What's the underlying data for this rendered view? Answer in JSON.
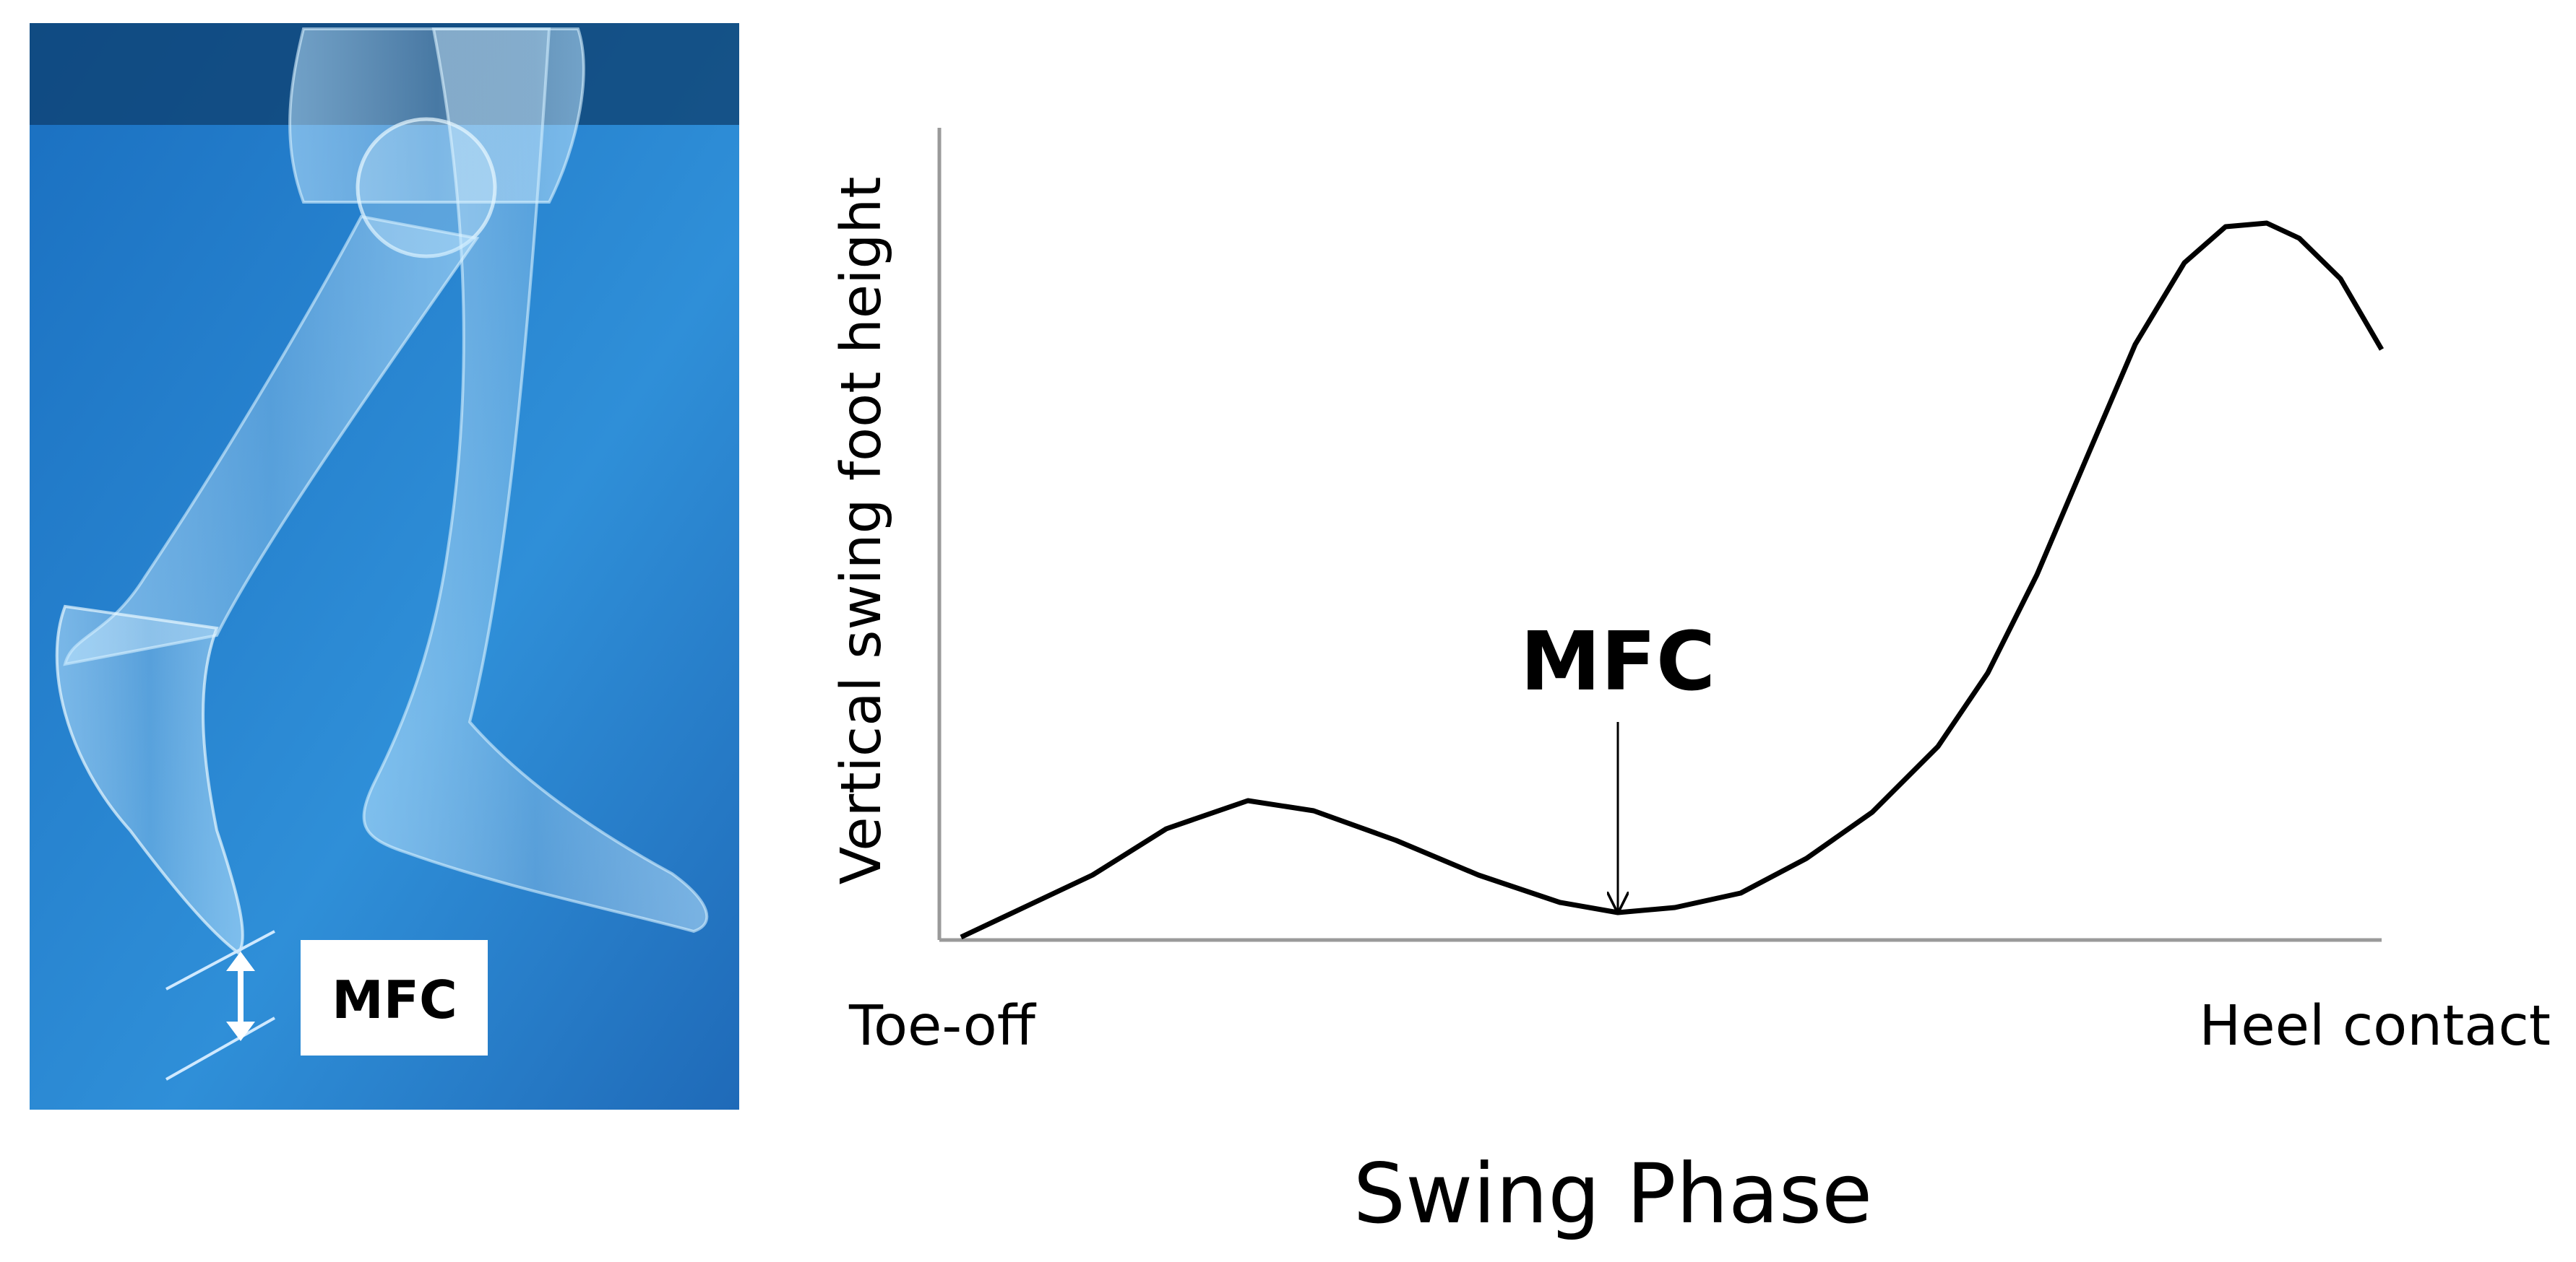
{
  "illustration": {
    "label": "MFC"
  },
  "graph": {
    "y_axis_label": "Vertical swing foot height",
    "annotation": "MFC",
    "start_label": "Toe-off",
    "end_label": "Heel contact",
    "x_axis_title": "Swing Phase"
  }
}
